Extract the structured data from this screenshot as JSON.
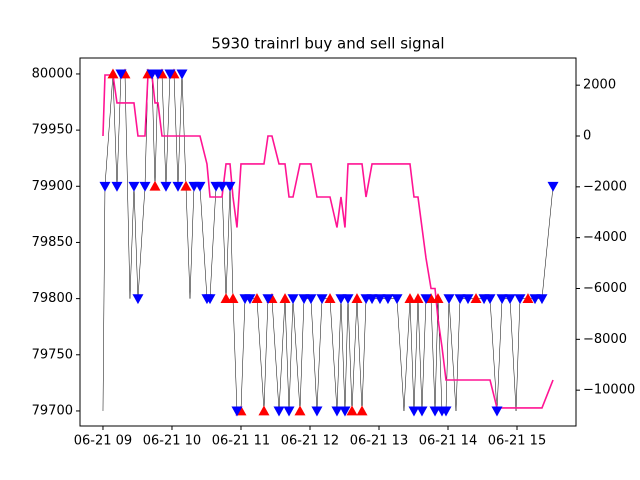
{
  "chart_data": {
    "type": "line",
    "title": "5930 trainrl buy and sell signal",
    "x": [
      9.0,
      9.029,
      9.145,
      9.203,
      9.261,
      9.319,
      9.391,
      9.449,
      9.507,
      9.609,
      9.652,
      9.71,
      9.754,
      9.797,
      9.855,
      9.913,
      9.971,
      10.029,
      10.087,
      10.145,
      10.203,
      10.261,
      10.319,
      10.406,
      10.507,
      10.551,
      10.638,
      10.725,
      10.783,
      10.841,
      10.884,
      10.942,
      11.0,
      11.058,
      11.13,
      11.232,
      11.333,
      11.391,
      11.449,
      11.551,
      11.638,
      11.696,
      11.754,
      11.855,
      11.913,
      12.014,
      12.101,
      12.174,
      12.29,
      12.391,
      12.449,
      12.507,
      12.551,
      12.609,
      12.681,
      12.754,
      12.812,
      12.899,
      13.014,
      13.13,
      13.261,
      13.362,
      13.449,
      13.507,
      13.565,
      13.623,
      13.681,
      13.754,
      13.812,
      13.855,
      13.913,
      13.971,
      14.014,
      14.116,
      14.174,
      14.29,
      14.406,
      14.522,
      14.609,
      14.71,
      14.783,
      14.899,
      14.986,
      15.043,
      15.159,
      15.261,
      15.362,
      15.522
    ],
    "series": [
      {
        "color": "#000000",
        "values": [
          79700,
          79900,
          80000,
          79900,
          80000,
          80000,
          79800,
          79900,
          79800,
          79900,
          80000,
          80000,
          79900,
          80000,
          80000,
          79900,
          80000,
          80000,
          79900,
          80000,
          79900,
          79800,
          79900,
          79900,
          79800,
          79800,
          79900,
          79900,
          79800,
          79900,
          79800,
          79700,
          79700,
          79800,
          79800,
          79800,
          79700,
          79800,
          79800,
          79700,
          79800,
          79700,
          79800,
          79700,
          79800,
          79800,
          79700,
          79800,
          79800,
          79700,
          79800,
          79700,
          79800,
          79700,
          79800,
          79700,
          79800,
          79800,
          79800,
          79800,
          79800,
          79700,
          79800,
          79700,
          79800,
          79700,
          79800,
          79800,
          79700,
          79800,
          79700,
          79700,
          79800,
          79700,
          79800,
          79800,
          79800,
          79800,
          79800,
          79700,
          79800,
          79800,
          79700,
          79800,
          79800,
          79800,
          79800,
          79900
        ]
      },
      {
        "color": "#ff0000",
        "marker": "^",
        "values": [
          null,
          null,
          80000,
          null,
          null,
          80000,
          null,
          null,
          null,
          null,
          80000,
          null,
          79900,
          null,
          80000,
          null,
          null,
          80000,
          null,
          null,
          79900,
          null,
          null,
          null,
          null,
          null,
          null,
          null,
          79800,
          null,
          79800,
          null,
          79700,
          null,
          null,
          79800,
          79700,
          null,
          79800,
          null,
          79800,
          null,
          null,
          79700,
          null,
          null,
          null,
          null,
          79800,
          null,
          null,
          null,
          null,
          79700,
          79800,
          79700,
          null,
          null,
          null,
          null,
          null,
          null,
          79800,
          null,
          79800,
          null,
          null,
          79800,
          null,
          79800,
          null,
          null,
          null,
          null,
          null,
          null,
          79800,
          null,
          null,
          null,
          null,
          null,
          null,
          null,
          79800,
          null,
          null,
          null
        ]
      },
      {
        "color": "#0000ff",
        "marker": "v",
        "values": [
          null,
          79900,
          null,
          79900,
          80000,
          null,
          null,
          79900,
          79800,
          79900,
          null,
          80000,
          null,
          80000,
          null,
          79900,
          80000,
          null,
          79900,
          80000,
          null,
          null,
          79900,
          79900,
          79800,
          79800,
          79900,
          79900,
          null,
          79900,
          null,
          79700,
          null,
          79800,
          79800,
          null,
          null,
          79800,
          null,
          79700,
          null,
          79700,
          79800,
          null,
          79800,
          79800,
          79700,
          79800,
          null,
          79700,
          79800,
          79700,
          79800,
          null,
          null,
          null,
          79800,
          79800,
          79800,
          79800,
          79800,
          null,
          null,
          79700,
          null,
          79700,
          79800,
          null,
          79700,
          null,
          79700,
          79700,
          79800,
          null,
          79800,
          79800,
          null,
          79800,
          79800,
          79700,
          79800,
          79800,
          null,
          79800,
          null,
          79800,
          79800,
          79900
        ]
      },
      {
        "color": "#ff1493",
        "axis": "y2",
        "values": [
          0,
          2400,
          2400,
          1300,
          1300,
          1300,
          1300,
          1300,
          0,
          0,
          2400,
          2400,
          1300,
          1300,
          0,
          0,
          0,
          0,
          0,
          0,
          0,
          0,
          0,
          0,
          -1100,
          -2400,
          -2400,
          -2400,
          -1100,
          -1100,
          -2400,
          -3600,
          -1100,
          -1100,
          -1100,
          -1100,
          -1100,
          0,
          0,
          -1100,
          -1100,
          -2400,
          -2400,
          -1100,
          -1100,
          -1100,
          -2400,
          -2400,
          -2400,
          -3600,
          -2400,
          -3600,
          -1100,
          -1100,
          -1100,
          -1100,
          -2400,
          -1100,
          -1100,
          -1100,
          -1100,
          -1100,
          -1100,
          -2400,
          -2400,
          -3600,
          -4800,
          -6000,
          -6000,
          -7200,
          -8300,
          -9600,
          -9600,
          -9600,
          -9600,
          -9600,
          -9600,
          -9600,
          -9600,
          -10700,
          -10700,
          -10700,
          -10700,
          -10700,
          -10700,
          -10700,
          -10700,
          -9600
        ]
      }
    ],
    "xlim": [
      8.667,
      15.855
    ],
    "xticks": [
      {
        "value": 9,
        "label": "06-21 09"
      },
      {
        "value": 10,
        "label": "06-21 10"
      },
      {
        "value": 11,
        "label": "06-21 11"
      },
      {
        "value": 12,
        "label": "06-21 12"
      },
      {
        "value": 13,
        "label": "06-21 13"
      },
      {
        "value": 14,
        "label": "06-21 14"
      },
      {
        "value": 15,
        "label": "06-21 15"
      }
    ],
    "ylim": [
      79686.6,
      80014.2
    ],
    "yticks": [
      79700,
      79750,
      79800,
      79850,
      79900,
      79950,
      80000
    ],
    "y2lim": [
      -11410,
      3069
    ],
    "y2ticks": [
      {
        "value": -10000,
        "label": "−10000"
      },
      {
        "value": -8000,
        "label": "−8000"
      },
      {
        "value": -6000,
        "label": "−6000"
      },
      {
        "value": -4000,
        "label": "−4000"
      },
      {
        "value": -2000,
        "label": "−2000"
      },
      0,
      2000
    ]
  }
}
